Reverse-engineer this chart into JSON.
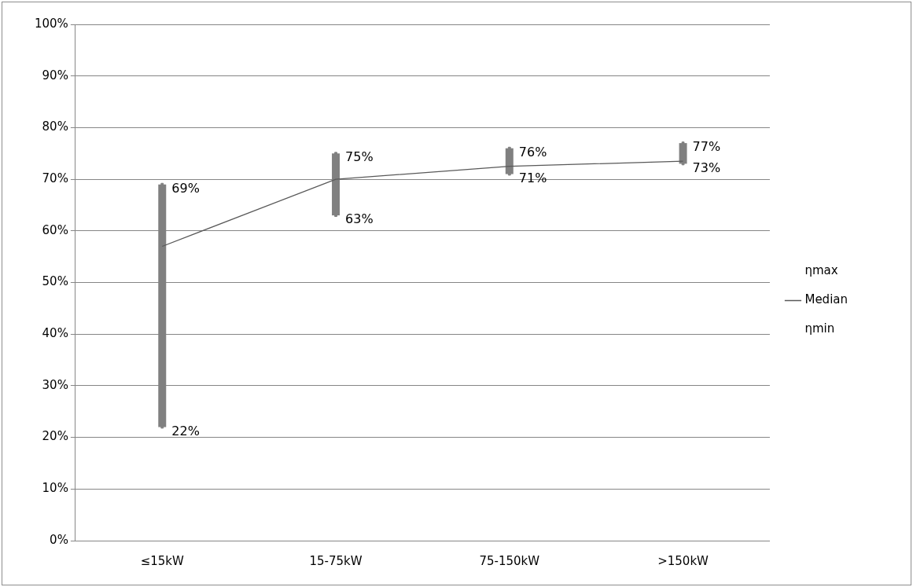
{
  "chart_data": {
    "type": "line",
    "categories": [
      "≤15kW",
      "15-75kW",
      "75-150kW",
      ">150kW"
    ],
    "series": [
      {
        "name": "ηmax",
        "type": "scatter",
        "marker": "square",
        "color": "#808080",
        "values": [
          69,
          75,
          76,
          77
        ],
        "value_labels": [
          "69%",
          "75%",
          "76%",
          "77%"
        ]
      },
      {
        "name": "Median",
        "color": "#595959",
        "values": [
          57,
          70,
          72.5,
          73.5
        ]
      },
      {
        "name": "ηmin",
        "type": "scatter",
        "marker": "square",
        "color": "#808080",
        "values": [
          22,
          63,
          71,
          73
        ],
        "value_labels": [
          "22%",
          "63%",
          "71%",
          "73%"
        ]
      }
    ],
    "ylim": [
      0,
      100
    ],
    "yticks": [
      {
        "value": 0,
        "label": "0%"
      },
      {
        "value": 10,
        "label": "10%"
      },
      {
        "value": 20,
        "label": "20%"
      },
      {
        "value": 30,
        "label": "30%"
      },
      {
        "value": 40,
        "label": "40%"
      },
      {
        "value": 50,
        "label": "50%"
      },
      {
        "value": 60,
        "label": "60%"
      },
      {
        "value": 70,
        "label": "70%"
      },
      {
        "value": 80,
        "label": "80%"
      },
      {
        "value": 90,
        "label": "90%"
      },
      {
        "value": 100,
        "label": "100%"
      }
    ],
    "grid": "y",
    "legend": "right",
    "marker": "none"
  }
}
